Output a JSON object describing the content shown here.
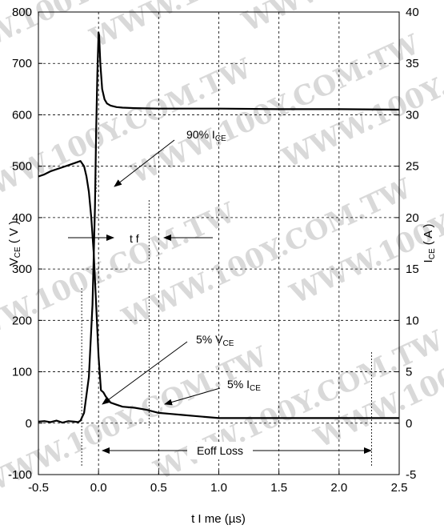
{
  "chart_data": {
    "type": "line",
    "watermark": "WWW.100Y.COM.TW",
    "xlabel": "t I me  (µs)",
    "ylabel_left": {
      "main": "V",
      "sub": "CE",
      "unit": " ( V )"
    },
    "ylabel_right": {
      "main": "I",
      "sub": "CE",
      "unit": " ( A )"
    },
    "xlim": [
      -0.5,
      2.5
    ],
    "ylim_left": [
      -100,
      800
    ],
    "ylim_right": [
      -5,
      40
    ],
    "grid": "dashed",
    "x_ticks": [
      "-0.5",
      "0.0",
      "0.5",
      "1.0",
      "1.5",
      "2.0",
      "2.5"
    ],
    "y_left_ticks": [
      "-100",
      "0",
      "100",
      "200",
      "300",
      "400",
      "500",
      "600",
      "700",
      "800"
    ],
    "y_right_ticks": [
      "-5",
      "0",
      "5",
      "10",
      "15",
      "20",
      "25",
      "30",
      "35",
      "40"
    ],
    "series": [
      {
        "axis": "left",
        "x": [
          -0.5,
          -0.45,
          -0.4,
          -0.35,
          -0.3,
          -0.25,
          -0.2,
          -0.17,
          -0.15,
          -0.12,
          -0.08,
          -0.05,
          -0.03,
          -0.02,
          -0.01,
          0.0,
          0.005,
          0.015,
          0.03,
          0.05,
          0.07,
          0.1,
          0.15,
          0.2,
          0.3,
          0.5,
          1.0,
          1.5,
          2.0,
          2.5
        ],
        "y": [
          3,
          4,
          2,
          5,
          1,
          4,
          3,
          2,
          5,
          20,
          90,
          230,
          420,
          570,
          680,
          760,
          755,
          700,
          650,
          630,
          622,
          618,
          615,
          614,
          613,
          612,
          612,
          611,
          611,
          610
        ]
      },
      {
        "axis": "right",
        "x": [
          -0.5,
          -0.45,
          -0.4,
          -0.35,
          -0.3,
          -0.25,
          -0.2,
          -0.15,
          -0.12,
          -0.1,
          -0.08,
          -0.06,
          -0.04,
          -0.02,
          0.0,
          0.02,
          0.04,
          0.06,
          0.08,
          0.1,
          0.15,
          0.2,
          0.3,
          0.4,
          0.5,
          0.6,
          0.7,
          0.8,
          0.9,
          1.0,
          1.5,
          2.0,
          2.5
        ],
        "y": [
          24.0,
          24.2,
          24.5,
          24.7,
          24.9,
          25.1,
          25.3,
          25.5,
          25.0,
          24.0,
          22.5,
          20.0,
          16.5,
          11.5,
          6.5,
          3.2,
          3.0,
          2.6,
          2.3,
          2.0,
          1.8,
          1.6,
          1.5,
          1.3,
          1.0,
          0.9,
          0.8,
          0.7,
          0.6,
          0.5,
          0.5,
          0.5,
          0.5
        ]
      }
    ],
    "annotations": {
      "ice90": {
        "text": "90% I",
        "sub": "CE"
      },
      "tf": {
        "text": "t f"
      },
      "vce5": {
        "text": "5% V",
        "sub": "CE"
      },
      "ice5": {
        "text": "5% I",
        "sub": "CE"
      },
      "eoff": {
        "text": "Eoff Loss"
      }
    }
  }
}
